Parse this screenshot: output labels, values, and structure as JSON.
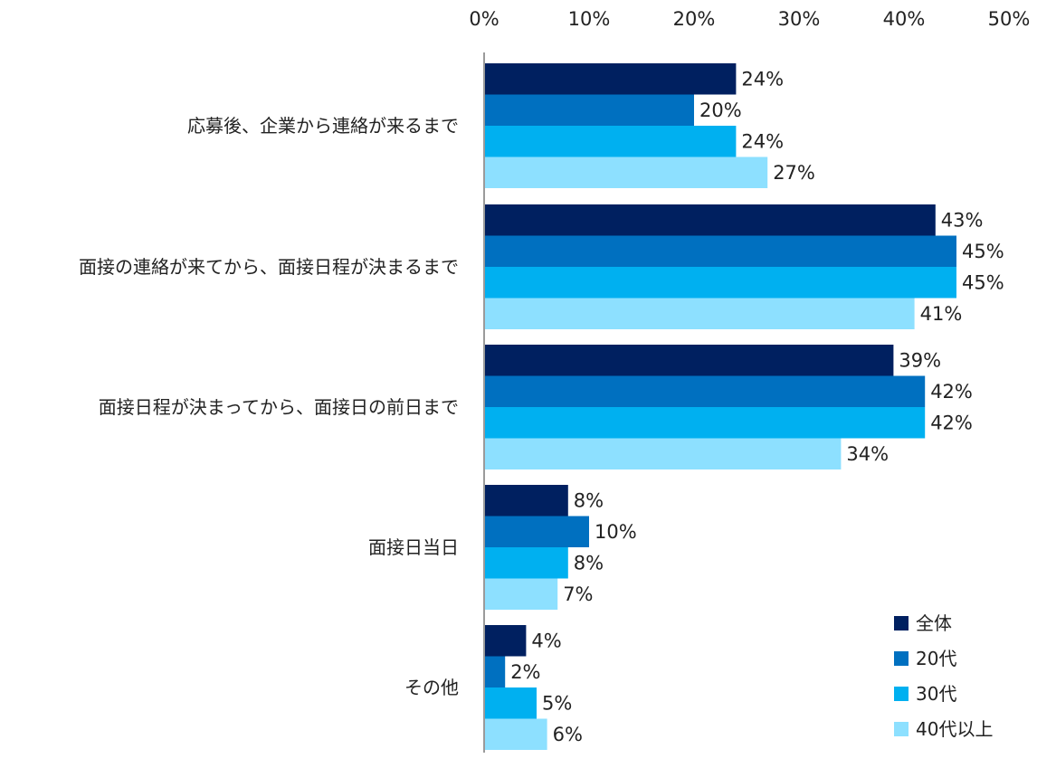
{
  "chart_data": {
    "type": "bar",
    "orientation": "horizontal",
    "categories": [
      "応募後、企業から連絡が来るまで",
      "面接の連絡が来てから、面接日程が決まるまで",
      "面接日程が決まってから、面接日の前日まで",
      "面接日当日",
      "その他"
    ],
    "series": [
      {
        "name": "全体",
        "color": "#002060",
        "values": [
          24,
          43,
          39,
          8,
          4
        ]
      },
      {
        "name": "20代",
        "color": "#0070C0",
        "values": [
          20,
          45,
          42,
          10,
          2
        ]
      },
      {
        "name": "30代",
        "color": "#00B0F0",
        "values": [
          24,
          45,
          42,
          8,
          5
        ]
      },
      {
        "name": "40代以上",
        "color": "#8DE0FF",
        "values": [
          27,
          41,
          34,
          7,
          6
        ]
      }
    ],
    "xlim": [
      0,
      50
    ],
    "x_ticks": [
      "0%",
      "10%",
      "20%",
      "30%",
      "40%",
      "50%"
    ],
    "x_axis_position": "top",
    "value_suffix": "%",
    "grid": false,
    "legend_position": "bottom-right"
  }
}
